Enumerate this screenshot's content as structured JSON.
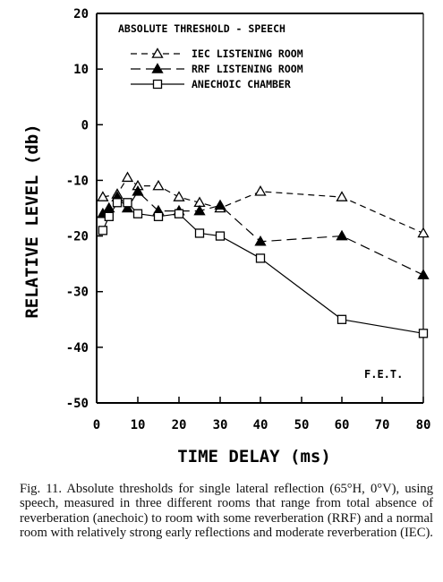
{
  "chart_data": {
    "type": "line",
    "title": "ABSOLUTE THRESHOLD - SPEECH",
    "xlabel": "TIME DELAY (ms)",
    "ylabel": "RELATIVE LEVEL (db)",
    "xlim": [
      0,
      80
    ],
    "ylim": [
      -50,
      20
    ],
    "x_ticks": [
      0,
      10,
      20,
      30,
      40,
      50,
      60,
      70,
      80
    ],
    "y_ticks": [
      20,
      10,
      0,
      -10,
      -20,
      -30,
      -40,
      -50
    ],
    "grid": false,
    "legend_position": "top-left",
    "annotation": "F.E.T.",
    "series": [
      {
        "name": "IEC LISTENING ROOM",
        "marker": "open-triangle",
        "line_style": "dashed",
        "x": [
          1.5,
          5,
          7.5,
          10,
          15,
          20,
          25,
          30,
          40,
          60,
          80
        ],
        "y": [
          -13,
          -12.5,
          -9.5,
          -11,
          -11,
          -13,
          -14,
          -15,
          -12,
          -13,
          -19.5
        ]
      },
      {
        "name": "RRF LISTENING ROOM",
        "marker": "filled-triangle",
        "line_style": "long-dash",
        "x": [
          1.5,
          3,
          5,
          7.5,
          10,
          15,
          20,
          25,
          30,
          40,
          60,
          80
        ],
        "y": [
          -16,
          -15,
          -13,
          -15,
          -12,
          -15.5,
          -15.5,
          -15.5,
          -14.5,
          -21,
          -20,
          -27
        ]
      },
      {
        "name": "ANECHOIC CHAMBER",
        "marker": "open-square",
        "line_style": "solid",
        "x": [
          1.5,
          3,
          5,
          7.5,
          10,
          15,
          20,
          25,
          30,
          40,
          60,
          80
        ],
        "y": [
          -19,
          -16.5,
          -14,
          -14,
          -16,
          -16.5,
          -16,
          -19.5,
          -20,
          -24,
          -35,
          -37.5
        ]
      }
    ]
  },
  "caption": "Fig. 11. Absolute thresholds for single lateral reflection (65°H, 0°V), using speech, measured in three different rooms that range from total absence of reverberation (anechoic) to room with some reverberation (RRF) and a normal room with relatively strong early reflections and moderate reverberation (IEC)."
}
